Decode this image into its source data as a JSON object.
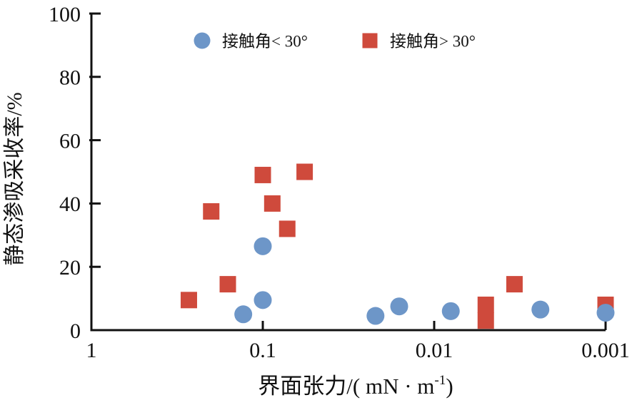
{
  "chart_data": {
    "type": "scatter",
    "title": "",
    "xlabel": {
      "prefix": "界面张力/( mN · m",
      "sup": "-1",
      "suffix": ")"
    },
    "ylabel": "静态渗吸采收率/%",
    "x_scale": "log-reversed",
    "xlim": [
      1,
      0.001
    ],
    "ylim": [
      0,
      100
    ],
    "x_ticks": [
      {
        "value": 1,
        "label": "1"
      },
      {
        "value": 0.1,
        "label": "0.1"
      },
      {
        "value": 0.01,
        "label": "0.01"
      },
      {
        "value": 0.001,
        "label": "0.001"
      }
    ],
    "y_ticks": [
      {
        "value": 0,
        "label": "0"
      },
      {
        "value": 20,
        "label": "20"
      },
      {
        "value": 40,
        "label": "40"
      },
      {
        "value": 60,
        "label": "60"
      },
      {
        "value": 80,
        "label": "80"
      },
      {
        "value": 100,
        "label": "100"
      }
    ],
    "grid": false,
    "legend_position": "top-inside",
    "series": [
      {
        "name": "接触角< 30°",
        "marker": "circle",
        "color": "#6D96C8",
        "points": [
          [
            0.13,
            5
          ],
          [
            0.1,
            9.5
          ],
          [
            0.1,
            26.5
          ],
          [
            0.022,
            4.5
          ],
          [
            0.016,
            7.5
          ],
          [
            0.008,
            6
          ],
          [
            0.0024,
            6.5
          ],
          [
            0.001,
            5.5
          ]
        ]
      },
      {
        "name": "接触角> 30°",
        "marker": "square",
        "color": "#CF4A3C",
        "points": [
          [
            0.27,
            9.5
          ],
          [
            0.2,
            37.5
          ],
          [
            0.16,
            14.5
          ],
          [
            0.1,
            49
          ],
          [
            0.088,
            40
          ],
          [
            0.072,
            32
          ],
          [
            0.057,
            50
          ],
          [
            0.005,
            8
          ],
          [
            0.005,
            3
          ],
          [
            0.0034,
            14.5
          ],
          [
            0.001,
            8
          ]
        ]
      }
    ],
    "axis_color": "#111111"
  }
}
